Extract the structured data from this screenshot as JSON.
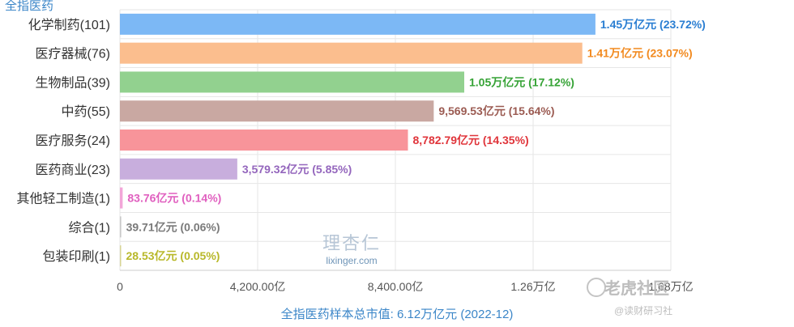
{
  "chart_data": {
    "type": "bar",
    "orientation": "horizontal",
    "corner_title": "全指医药",
    "xlabel": "全指医药样本总市值: 6.12万亿元 (2022-12)",
    "categories": [
      "化学制药(101)",
      "医疗器械(76)",
      "生物制品(39)",
      "中药(55)",
      "医疗服务(24)",
      "医药商业(23)",
      "其他轻工制造(1)",
      "综合(1)",
      "包装印刷(1)"
    ],
    "values": [
      14500,
      14100,
      10500,
      9569.53,
      8782.79,
      3579.32,
      83.76,
      39.71,
      28.53
    ],
    "value_labels": [
      "1.45万亿元 (23.72%)",
      "1.41万亿元 (23.07%)",
      "1.05万亿元 (17.12%)",
      "9,569.53亿元 (15.64%)",
      "8,782.79亿元 (14.35%)",
      "3,579.32亿元 (5.85%)",
      "83.76亿元 (0.14%)",
      "39.71亿元 (0.06%)",
      "28.53亿元 (0.05%)"
    ],
    "bar_colors": [
      "#7cb8f5",
      "#fbbe8e",
      "#92d18f",
      "#c9a8a2",
      "#f8949a",
      "#c8aedd",
      "#f2a6d8",
      "#c9c9c9",
      "#d7d494"
    ],
    "label_colors": [
      "#2a7ed2",
      "#f28a1f",
      "#36a336",
      "#9b5b52",
      "#e0353b",
      "#9466bd",
      "#e05fbf",
      "#7a7a7a",
      "#b8b82a"
    ],
    "xticks": [
      0,
      4200,
      8400,
      12600,
      16800
    ],
    "xtick_labels": [
      "0",
      "4,200.00亿",
      "8,400.00亿",
      "1.26万亿",
      "1.68万亿"
    ],
    "xlim": [
      0,
      16800
    ],
    "grid": true
  },
  "watermark": {
    "cn": "理杏仁",
    "en": "lixinger.com"
  },
  "brand": {
    "name": "老虎社区",
    "sub": "@读财研习社"
  }
}
